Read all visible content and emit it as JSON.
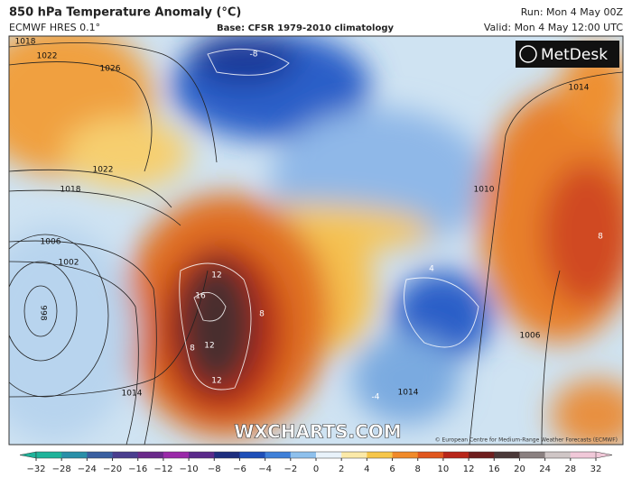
{
  "header": {
    "title": "850 hPa Temperature Anomaly (°C)",
    "model": "ECMWF HRES 0.1°",
    "base": "Base: CFSR 1979-2010 climatology",
    "run": "Run: Mon 4 May 00Z",
    "valid": "Valid: Mon 4 May 12:00 UTC"
  },
  "logo": "MetDesk",
  "watermark": "WXCHARTS.COM",
  "credit": "© European Centre for Medium-Range Weather Forecasts (ECMWF)",
  "isobar_labels": [
    "1018",
    "1022",
    "1026",
    "1022",
    "1018",
    "1006",
    "1002",
    "998",
    "1014",
    "1010",
    "1014",
    "1006",
    "1014"
  ],
  "anomaly_labels": [
    "-8",
    "12",
    "16",
    "8",
    "12",
    "12",
    "8",
    "8",
    "4",
    "-4"
  ],
  "colorbar": {
    "ticks": [
      "−32",
      "−28",
      "−24",
      "−20",
      "−16",
      "−12",
      "−10",
      "−8",
      "−6",
      "−4",
      "−2",
      "0",
      "2",
      "4",
      "6",
      "8",
      "10",
      "12",
      "16",
      "20",
      "24",
      "28",
      "32"
    ],
    "colors": [
      "#1fb39a",
      "#2a8fa8",
      "#3a5fa0",
      "#4a3e8e",
      "#6a2a8a",
      "#9a2aa8",
      "#5a2a8a",
      "#1e2e7e",
      "#1e4fb8",
      "#3f80d8",
      "#8ec0ec",
      "#e8f2fa",
      "#fbe9a8",
      "#f6c64a",
      "#f08a2a",
      "#e0561e",
      "#b8261a",
      "#6e1e1e",
      "#4a3838",
      "#8a8080",
      "#cfc6c6",
      "#f0c8d8"
    ]
  }
}
